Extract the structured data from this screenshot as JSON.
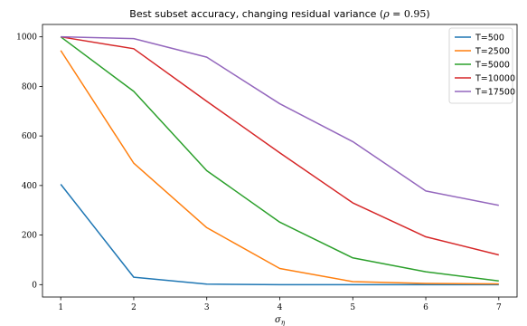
{
  "chart_data": {
    "type": "line",
    "title": "Best subset accuracy, changing residual variance (ρ = 0.95)",
    "xlabel": "σ_η",
    "ylabel": "",
    "x": [
      1,
      2,
      3,
      4,
      5,
      6,
      7
    ],
    "xlim": [
      0.75,
      7.25
    ],
    "ylim": [
      -50,
      1050
    ],
    "xticks": [
      1,
      2,
      3,
      4,
      5,
      6,
      7
    ],
    "yticks": [
      0,
      200,
      400,
      600,
      800,
      1000
    ],
    "grid": false,
    "legend_position": "top-right",
    "series": [
      {
        "name": "T=500",
        "color": "#1f77b4",
        "values": [
          405,
          30,
          2,
          0,
          0,
          0,
          0
        ]
      },
      {
        "name": "T=2500",
        "color": "#ff7f0e",
        "values": [
          945,
          490,
          230,
          65,
          12,
          5,
          3
        ]
      },
      {
        "name": "T=5000",
        "color": "#2ca02c",
        "values": [
          1000,
          780,
          460,
          252,
          108,
          52,
          15
        ]
      },
      {
        "name": "T=10000",
        "color": "#d62728",
        "values": [
          1000,
          952,
          740,
          532,
          330,
          193,
          120
        ]
      },
      {
        "name": "T=17500",
        "color": "#9467bd",
        "values": [
          1000,
          993,
          918,
          730,
          577,
          378,
          320
        ]
      }
    ]
  }
}
